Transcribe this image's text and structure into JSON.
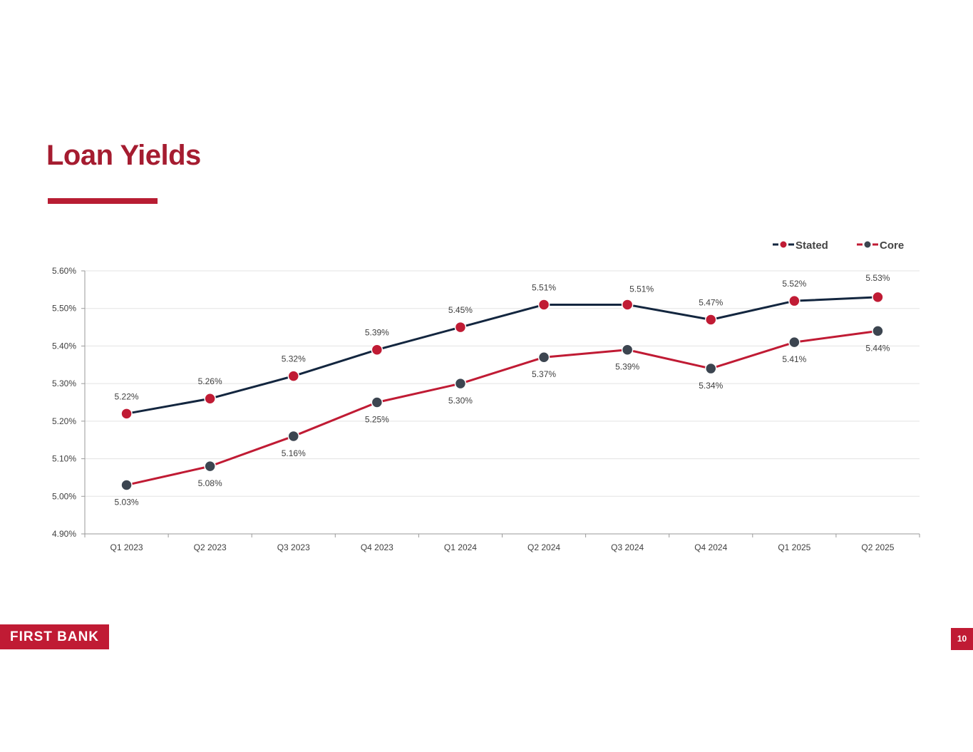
{
  "title": "Loan Yields",
  "logo_text": "FIRST BANK",
  "page_number": "10",
  "colors": {
    "title": "#a51c30",
    "accent_red": "#b81d33",
    "stated_line": "#13263f",
    "stated_marker": "#c01b34",
    "core_line": "#c01b34",
    "core_marker": "#3c4550",
    "grid": "#e3e3e3",
    "axis_text": "#404040"
  },
  "chart_data": {
    "type": "line",
    "title": "",
    "xlabel": "",
    "ylabel": "",
    "categories": [
      "Q1 2023",
      "Q2 2023",
      "Q3 2023",
      "Q4 2023",
      "Q1 2024",
      "Q2 2024",
      "Q3 2024",
      "Q4 2024",
      "Q1 2025",
      "Q2 2025"
    ],
    "ylim": [
      4.9,
      5.6
    ],
    "yticks": [
      "4.90%",
      "5.00%",
      "5.10%",
      "5.20%",
      "5.30%",
      "5.40%",
      "5.50%",
      "5.60%"
    ],
    "grid": true,
    "legend_position": "top-right",
    "series": [
      {
        "name": "Stated",
        "values": [
          5.22,
          5.26,
          5.32,
          5.39,
          5.45,
          5.51,
          5.51,
          5.47,
          5.52,
          5.53
        ],
        "labels": [
          "5.22%",
          "5.26%",
          "5.32%",
          "5.39%",
          "5.45%",
          "5.51%",
          "5.51%",
          "5.47%",
          "5.52%",
          "5.53%"
        ]
      },
      {
        "name": "Core",
        "values": [
          5.03,
          5.08,
          5.16,
          5.25,
          5.3,
          5.37,
          5.39,
          5.34,
          5.41,
          5.44
        ],
        "labels": [
          "5.03%",
          "5.08%",
          "5.16%",
          "5.25%",
          "5.30%",
          "5.37%",
          "5.39%",
          "5.34%",
          "5.41%",
          "5.44%"
        ]
      }
    ]
  }
}
